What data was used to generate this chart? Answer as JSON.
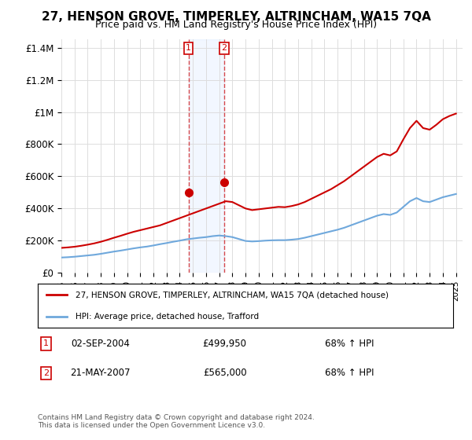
{
  "title": "27, HENSON GROVE, TIMPERLEY, ALTRINCHAM, WA15 7QA",
  "subtitle": "Price paid vs. HM Land Registry's House Price Index (HPI)",
  "legend_line1": "27, HENSON GROVE, TIMPERLEY, ALTRINCHAM, WA15 7QA (detached house)",
  "legend_line2": "HPI: Average price, detached house, Trafford",
  "footer": "Contains HM Land Registry data © Crown copyright and database right 2024.\nThis data is licensed under the Open Government Licence v3.0.",
  "sale1_label": "1",
  "sale1_date": "02-SEP-2004",
  "sale1_price": "£499,950",
  "sale1_hpi": "68% ↑ HPI",
  "sale1_year": 2004.67,
  "sale1_value": 499950,
  "sale2_label": "2",
  "sale2_date": "21-MAY-2007",
  "sale2_price": "£565,000",
  "sale2_hpi": "68% ↑ HPI",
  "sale2_year": 2007.38,
  "sale2_value": 565000,
  "hpi_color": "#6fa8dc",
  "price_color": "#cc0000",
  "background_color": "#ffffff",
  "grid_color": "#dddddd",
  "ylim": [
    0,
    1450000
  ],
  "xlim": [
    1995,
    2025.5
  ],
  "yticks": [
    0,
    200000,
    400000,
    600000,
    800000,
    1000000,
    1200000,
    1400000
  ],
  "ytick_labels": [
    "£0",
    "£200K",
    "£400K",
    "£600K",
    "£800K",
    "£1M",
    "£1.2M",
    "£1.4M"
  ],
  "xticks": [
    1995,
    1996,
    1997,
    1998,
    1999,
    2000,
    2001,
    2002,
    2003,
    2004,
    2005,
    2006,
    2007,
    2008,
    2009,
    2010,
    2011,
    2012,
    2013,
    2014,
    2015,
    2016,
    2017,
    2018,
    2019,
    2020,
    2021,
    2022,
    2023,
    2024,
    2025
  ],
  "hpi_x": [
    1995,
    1995.5,
    1996,
    1996.5,
    1997,
    1997.5,
    1998,
    1998.5,
    1999,
    1999.5,
    2000,
    2000.5,
    2001,
    2001.5,
    2002,
    2002.5,
    2003,
    2003.5,
    2004,
    2004.5,
    2005,
    2005.5,
    2006,
    2006.5,
    2007,
    2007.5,
    2008,
    2008.5,
    2009,
    2009.5,
    2010,
    2010.5,
    2011,
    2011.5,
    2012,
    2012.5,
    2013,
    2013.5,
    2014,
    2014.5,
    2015,
    2015.5,
    2016,
    2016.5,
    2017,
    2017.5,
    2018,
    2018.5,
    2019,
    2019.5,
    2020,
    2020.5,
    2021,
    2021.5,
    2022,
    2022.5,
    2023,
    2023.5,
    2024,
    2024.5,
    2025
  ],
  "hpi_y": [
    95000,
    97000,
    100000,
    104000,
    108000,
    112000,
    118000,
    125000,
    132000,
    138000,
    145000,
    152000,
    158000,
    163000,
    170000,
    178000,
    185000,
    193000,
    200000,
    208000,
    213000,
    218000,
    222000,
    228000,
    232000,
    228000,
    222000,
    210000,
    198000,
    195000,
    197000,
    200000,
    202000,
    203000,
    203000,
    206000,
    210000,
    218000,
    228000,
    238000,
    248000,
    258000,
    268000,
    280000,
    295000,
    310000,
    325000,
    340000,
    355000,
    365000,
    360000,
    375000,
    410000,
    445000,
    465000,
    445000,
    440000,
    455000,
    470000,
    480000,
    490000
  ],
  "price_x": [
    1995,
    1995.5,
    1996,
    1996.5,
    1997,
    1997.5,
    1998,
    1998.5,
    1999,
    1999.5,
    2000,
    2000.5,
    2001,
    2001.5,
    2002,
    2002.5,
    2003,
    2003.5,
    2004,
    2004.5,
    2005,
    2005.5,
    2006,
    2006.5,
    2007,
    2007.5,
    2008,
    2008.5,
    2009,
    2009.5,
    2010,
    2010.5,
    2011,
    2011.5,
    2012,
    2012.5,
    2013,
    2013.5,
    2014,
    2014.5,
    2015,
    2015.5,
    2016,
    2016.5,
    2017,
    2017.5,
    2018,
    2018.5,
    2019,
    2019.5,
    2020,
    2020.5,
    2021,
    2021.5,
    2022,
    2022.5,
    2023,
    2023.5,
    2024,
    2024.5,
    2025
  ],
  "price_y": [
    155000,
    158000,
    162000,
    168000,
    175000,
    183000,
    193000,
    205000,
    218000,
    230000,
    243000,
    255000,
    265000,
    275000,
    285000,
    295000,
    310000,
    325000,
    340000,
    355000,
    370000,
    385000,
    400000,
    415000,
    430000,
    445000,
    440000,
    420000,
    400000,
    390000,
    395000,
    400000,
    405000,
    410000,
    408000,
    415000,
    425000,
    440000,
    460000,
    480000,
    500000,
    520000,
    545000,
    570000,
    600000,
    630000,
    660000,
    690000,
    720000,
    740000,
    730000,
    755000,
    830000,
    900000,
    945000,
    900000,
    890000,
    920000,
    955000,
    975000,
    990000
  ],
  "shade_x1": 2004.67,
  "shade_x2": 2007.38
}
